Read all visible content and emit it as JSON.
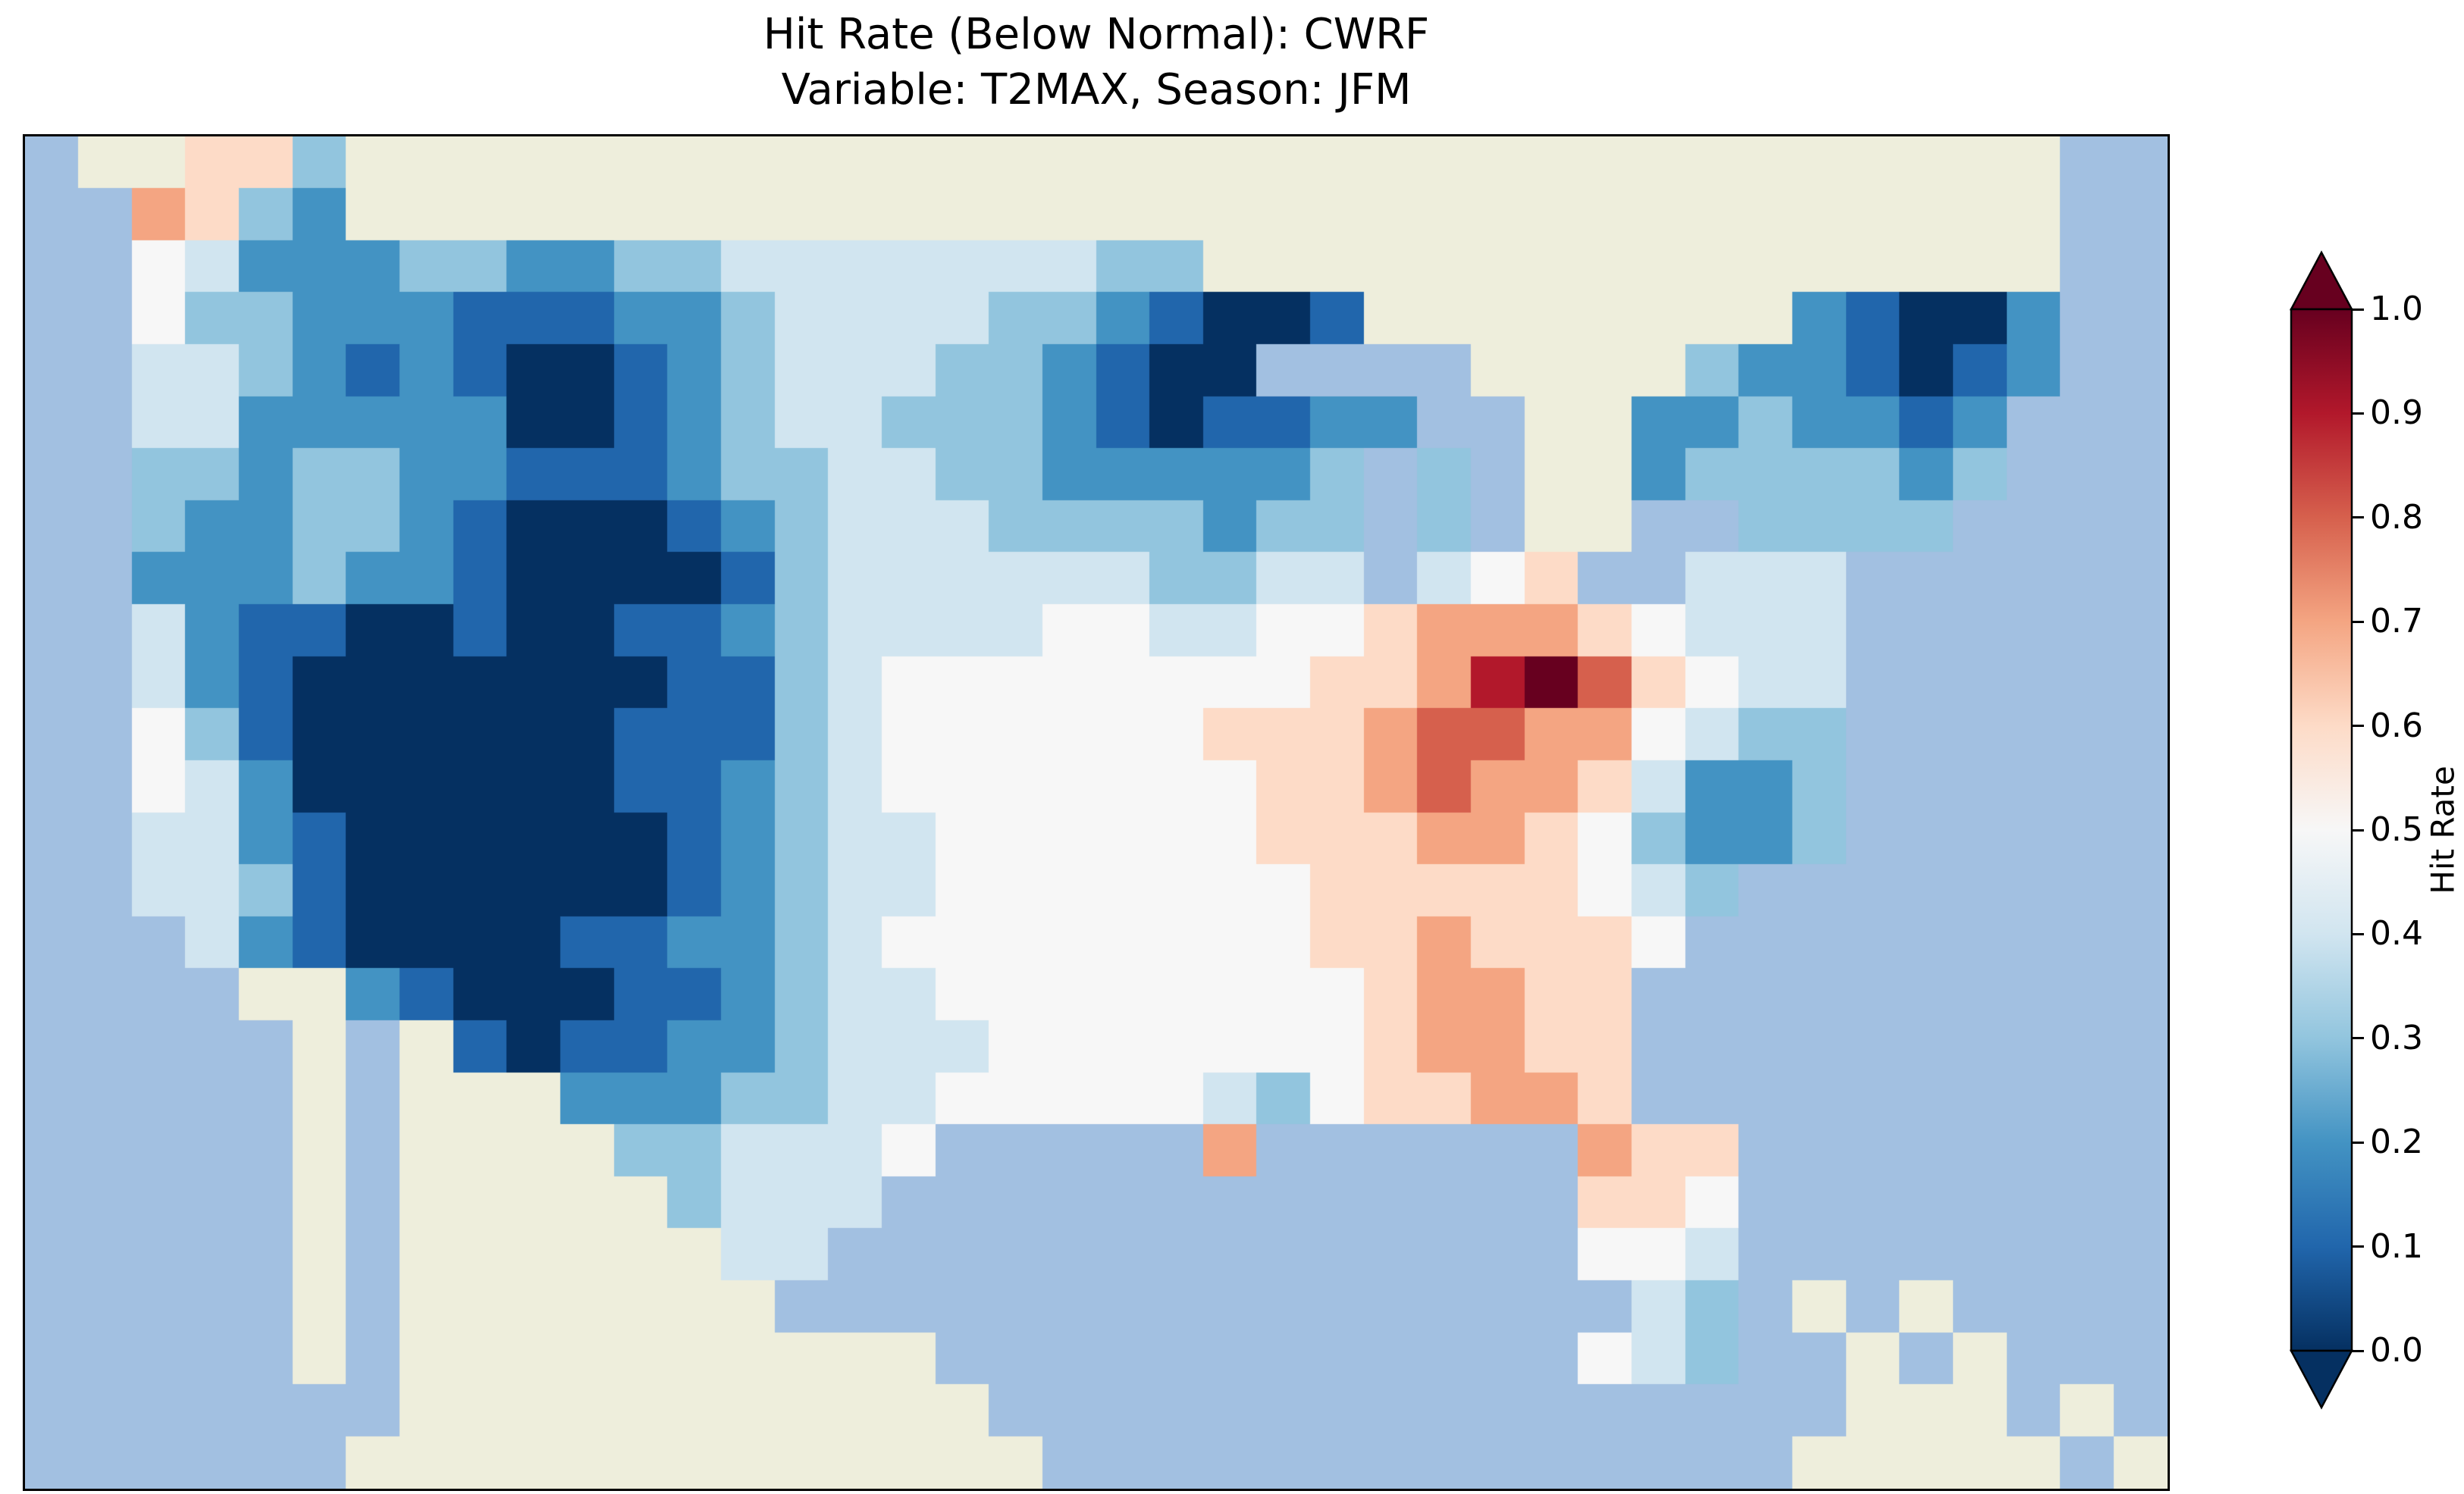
{
  "title": {
    "line1": "Hit Rate (Below Normal): CWRF",
    "line2": "Variable: T2MAX, Season: JFM"
  },
  "colorbar": {
    "label": "Hit Rate",
    "tick_labels": [
      "1.0",
      "0.9",
      "0.8",
      "0.7",
      "0.6",
      "0.5",
      "0.4",
      "0.3",
      "0.2",
      "0.1",
      "0.0"
    ]
  },
  "colors": {
    "ocean": "#a2c0e1",
    "land": "#eeeedc",
    "map_frame": "#000000",
    "palette": [
      "#053061",
      "#2166ac",
      "#4393c3",
      "#92c5de",
      "#d1e5f0",
      "#f7f7f7",
      "#fddbc7",
      "#f4a582",
      "#d6604d",
      "#b2182b",
      "#67001f"
    ]
  },
  "chart_data": {
    "type": "heatmap",
    "title": "Hit Rate (Below Normal): CWRF",
    "subtitle": "Variable: T2MAX, Season: JFM",
    "model": "CWRF",
    "variable": "T2MAX",
    "season": "JFM",
    "metric": "Hit Rate",
    "category": "Below Normal",
    "colormap": "RdBu_r (dark blue = 0.0, white = 0.5, dark red = 1.0)",
    "value_range": [
      0.0,
      1.0
    ],
    "colorbar_ticks": [
      1.0,
      0.9,
      0.8,
      0.7,
      0.6,
      0.5,
      0.4,
      0.3,
      0.2,
      0.1,
      0.0
    ],
    "region": "Continental United States with surrounding Canada, Mexico, Gulf of Mexico, Atlantic and Pacific",
    "grid": {
      "cols": 40,
      "rows": 26,
      "cell_encoding": "one char per map cell, row 0 = north: W = water (ocean/Great Lakes), L = land outside data domain (Canada/Mexico/Baja/Cuba), digits 0-9 = hit-rate bin 0.0-0.9, A = 1.0",
      "cells": [
        "WLL663LLLLLLLLLLLLLLLLLLLLLLLLLLLLLLLLWW",
        "WW7632LLLLLLLLLLLLLLLLLLLLLLLLLLLLLLLLWW",
        "WW54222332233444444433LLLLLLLLLLLLLLLLWW",
        "WW53322211122344443321001LLLLLLLL21002WW",
        "WW443212100123444332100WWWWLLLL3221012WW",
        "WW442222200123443332101122WWLL2232212WWW",
        "WW33233221112334433222223W3WLL2333323WWW",
        "WW32233210001234443333233W3WLLWW3333WWWW",
        "WW22232210000134444443344W456WW444WWWWWW",
        "WW42110010011234444554455677765444WWWWWW",
        "WW42100000001134555555556679A86544WWWWWW",
        "WW53100000011134555555666788775433WWWWWW",
        "WW54200000011234555555566787764223WWWWWW",
        "WW44210000001234455555566677653223WWWWWW",
        "WW443100000012344555555566666543WWWWWWWW",
        "WWW4210000112234555555556676665WWWWWWWWW",
        "WWWWLL210001123445555555567766WWWWWWWWWW",
        "WWWWWLWL1011223444555555567766WWWWWWWWWW",
        "WWWWWLWLLL22233445555543566776WWWWWWWWWW",
        "WWWWWLWLLLL334445WWWWW7WWWWWW766WWWWWWWW",
        "WWWWWLWLLLLL3444WWWWWWWWWWWWW665WWWWWWWW",
        "WWWWWLWLLLLLL44WWWWWWWWWWWWWW554WWWWWWWW",
        "WWWWWLWLLLLLLLWWWWWWWWWWWWWWWW43WLWLWWWW",
        "WWWWWLWLLLLLLLLLLWWWWWWWWWWWW543WWLWLWWW",
        "WWWWWWWLLLLLLLLLLLWWWWWWWWWWWWWWWWLLLWLW",
        "WWWWWWLLLLLLLLLLLLLWWWWWWWWWWWWWWLLLLLWL"
      ]
    },
    "notable_features": [
      "Very low hit rate (0.0-0.1, dark blue) over the Great Basin / Interior West (NV, UT, AZ, CO, WY, MT, NM)",
      "Very low hit rate (0.0-0.1) over northern Minnesota / Lake Superior area and over Maine",
      "High hit rate (0.7-0.9, red) over the Ohio Valley (OH, IN, KY, WV, TN) with a dark-red ~1.0 spot in Ohio",
      "Moderately high hit rate (0.6-0.7) over the Deep South (AL, GA) and Florida",
      "Small high-hit-rate (0.6-0.7) patch on the Pacific Northwest coast near Puget Sound",
      "Near 0.4-0.6 (white/pale) across the central Great Plains and Texas",
      "Low 0.2-0.4 (blue) patch over Virginia / North Carolina"
    ]
  }
}
